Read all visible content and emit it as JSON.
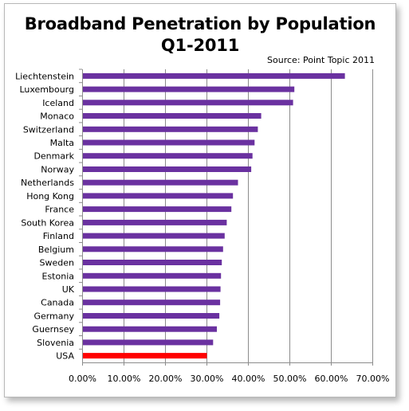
{
  "chart_data": {
    "type": "bar",
    "orientation": "horizontal",
    "title": "Broadband Penetration by Population",
    "subtitle": "Q1-2011",
    "source": "Source: Point Topic 2011",
    "xlabel": "",
    "ylabel": "",
    "xlim": [
      0,
      0.7
    ],
    "x_tick_values": [
      0,
      0.1,
      0.2,
      0.3,
      0.4,
      0.5,
      0.6,
      0.7
    ],
    "x_tick_labels": [
      "0.00%",
      "10.00%",
      "20.00%",
      "30.00%",
      "40.00%",
      "50.00%",
      "60.00%",
      "70.00%"
    ],
    "grid": "vertical",
    "legend": "none",
    "bar_color": "#6a31a0",
    "highlight_color": "#ff0000",
    "categories": [
      "Liechtenstein",
      "Luxembourg",
      "Iceland",
      "Monaco",
      "Switzerland",
      "Malta",
      "Denmark",
      "Norway",
      "Netherlands",
      "Hong Kong",
      "France",
      "South Korea",
      "Finland",
      "Belgium",
      "Sweden",
      "Estonia",
      "UK",
      "Canada",
      "Germany",
      "Guernsey",
      "Slovenia",
      "USA"
    ],
    "values": [
      0.632,
      0.51,
      0.507,
      0.43,
      0.422,
      0.414,
      0.409,
      0.406,
      0.374,
      0.362,
      0.358,
      0.347,
      0.342,
      0.338,
      0.335,
      0.333,
      0.332,
      0.331,
      0.329,
      0.323,
      0.314,
      0.299
    ],
    "highlighted": [
      "USA"
    ]
  }
}
